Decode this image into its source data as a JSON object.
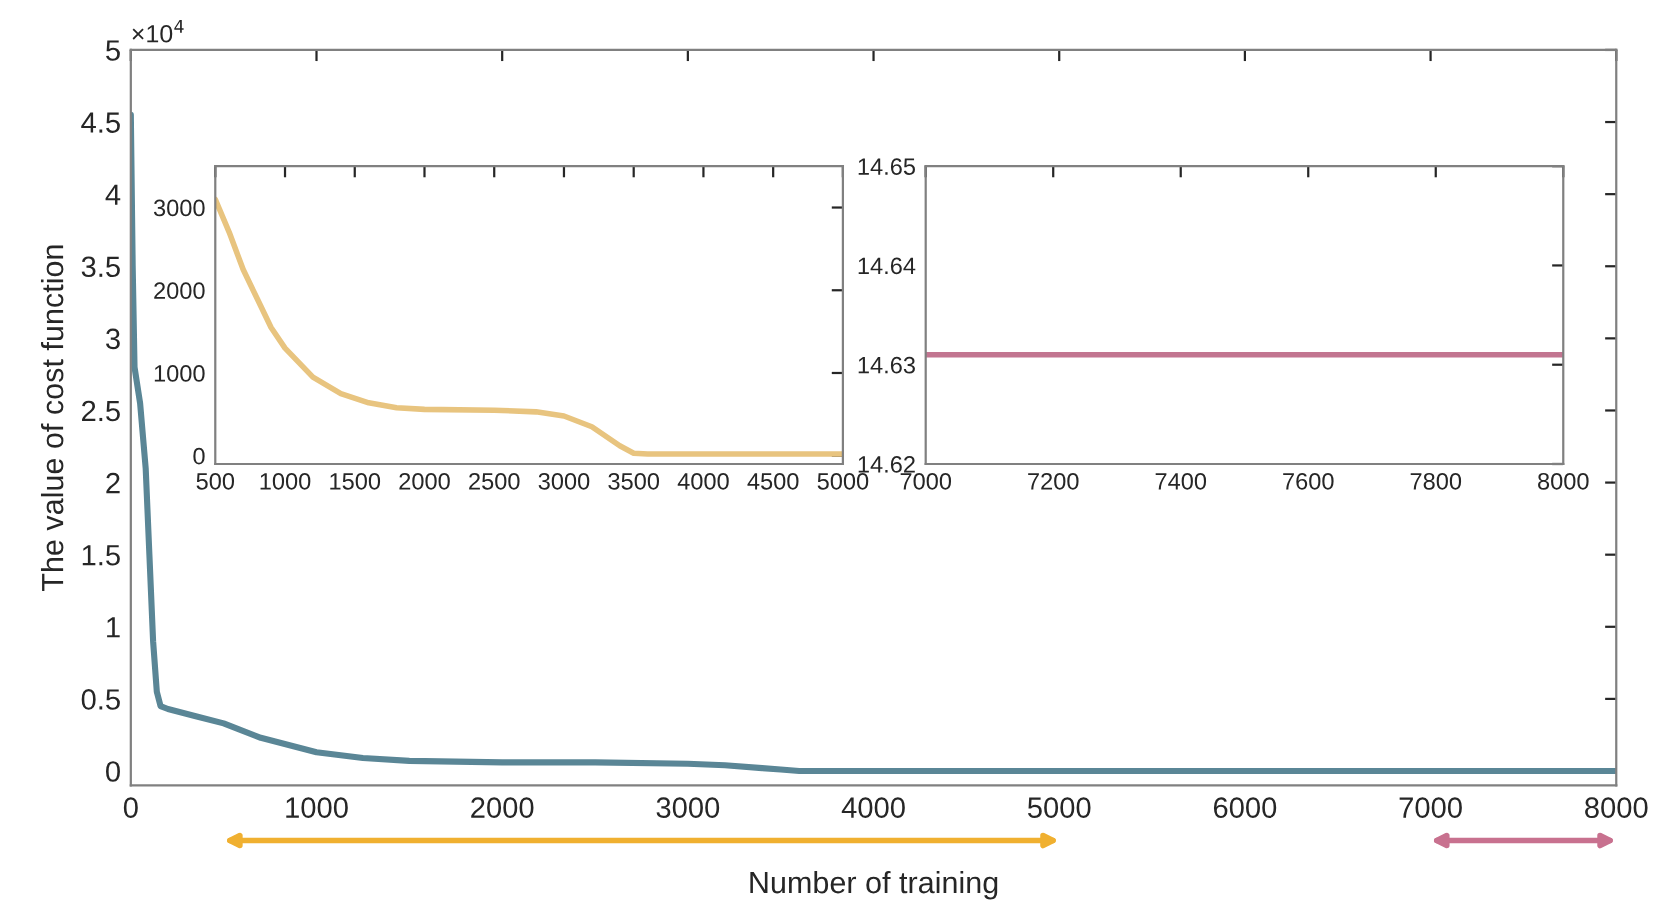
{
  "chart_data": [
    {
      "type": "line",
      "xlabel": "Number of training",
      "ylabel": "The value of cost function",
      "annotations": [
        "×10$^{4}$"
      ],
      "series": [
        {
          "color": "#5a8696",
          "x": [
            0,
            10,
            20,
            50,
            80,
            100,
            120,
            140,
            160,
            200,
            350,
            500,
            700,
            1000,
            1250,
            1500,
            2000,
            2500,
            3000,
            3200,
            3400,
            3500,
            3600,
            4000,
            5000,
            6000,
            7000,
            8000
          ],
          "values": [
            4.55,
            3.5,
            2.8,
            2.55,
            2.1,
            1.5,
            0.9,
            0.55,
            0.45,
            0.43,
            0.38,
            0.33,
            0.23,
            0.13,
            0.09,
            0.07,
            0.06,
            0.06,
            0.05,
            0.04,
            0.02,
            0.01,
            0,
            0,
            0,
            0,
            0,
            0
          ]
        }
      ],
      "xlim": [
        0,
        8000
      ],
      "xticks": [
        0,
        1000,
        2000,
        3000,
        4000,
        5000,
        6000,
        7000,
        8000
      ],
      "ylim": [
        -0.1,
        5
      ],
      "yticks": [
        0,
        0.5,
        1,
        1.5,
        2,
        2.5,
        3,
        3.5,
        4,
        4.5,
        5
      ],
      "grid": false,
      "line_style": "solid"
    },
    {
      "type": "line",
      "series": [
        {
          "color": "#e8c47f",
          "x": [
            500,
            600,
            700,
            800,
            900,
            1000,
            1200,
            1400,
            1600,
            1800,
            2000,
            2500,
            2800,
            3000,
            3200,
            3400,
            3500,
            3600,
            4000,
            5000
          ],
          "values": [
            3100,
            2700,
            2250,
            1900,
            1550,
            1300,
            950,
            750,
            640,
            580,
            560,
            550,
            530,
            480,
            350,
            120,
            30,
            20,
            20,
            20
          ]
        }
      ],
      "xlim": [
        500,
        5000
      ],
      "xticks": [
        500,
        1000,
        1500,
        2000,
        2500,
        3000,
        3500,
        4000,
        4500,
        5000
      ],
      "ylim": [
        -100,
        3500
      ],
      "yticks": [
        0,
        1000,
        2000,
        3000
      ],
      "grid": false,
      "line_style": "solid"
    },
    {
      "type": "line",
      "series": [
        {
          "color": "#c27590",
          "x": [
            7000,
            8000
          ],
          "values": [
            14.631,
            14.631
          ]
        }
      ],
      "xlim": [
        7000,
        8000
      ],
      "xticks": [
        7000,
        7200,
        7400,
        7600,
        7800,
        8000
      ],
      "ylim": [
        14.62,
        14.65
      ],
      "yticks": [
        14.62,
        14.63,
        14.64,
        14.65
      ],
      "grid": false,
      "line_style": "solid"
    }
  ]
}
